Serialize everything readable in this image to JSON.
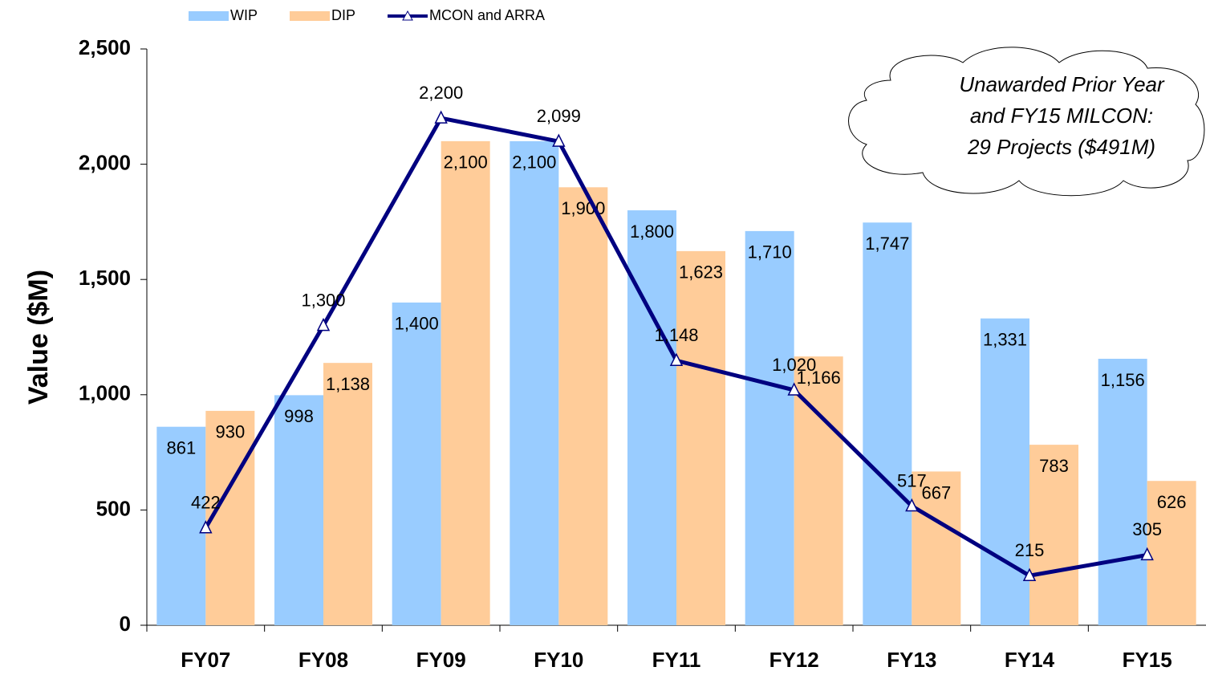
{
  "chart_data": {
    "type": "bar",
    "categories": [
      "FY07",
      "FY08",
      "FY09",
      "FY10",
      "FY11",
      "FY12",
      "FY13",
      "FY14",
      "FY15"
    ],
    "y_label": "Value ($M)",
    "annotation": [
      "Unawarded Prior Year",
      "and FY15  MILCON:",
      "29 Projects ($491M)"
    ],
    "ylim": [
      0,
      2500
    ],
    "yticks": [
      0,
      500,
      {
        "value": 1000,
        "label": "1,000"
      },
      {
        "value": 1500,
        "label": "1,500"
      },
      {
        "value": 2000,
        "label": "2,000"
      },
      {
        "value": 2500,
        "label": "2,500"
      }
    ],
    "legend": "top",
    "series": [
      {
        "name": "WIP",
        "color": "#99ccff",
        "type": "bar",
        "values": [
          861,
          998,
          1400,
          2100,
          1800,
          1710,
          1747,
          1331,
          1156
        ],
        "value_labels": [
          "861",
          "998",
          "1,400",
          "2,100",
          "1,800",
          "1,710",
          "1,747",
          "1,331",
          "1,156"
        ]
      },
      {
        "name": "DIP",
        "color": "#ffcc99",
        "type": "bar",
        "values": [
          930,
          1138,
          2100,
          1900,
          1623,
          1166,
          667,
          783,
          626
        ],
        "value_labels": [
          "930",
          "1,138",
          "2,100",
          "1,900",
          "1,623",
          "1,166",
          "667",
          "783",
          "626"
        ]
      },
      {
        "name": "MCON and ARRA",
        "color": "#000080",
        "type": "line",
        "values": [
          422,
          1300,
          2200,
          2099,
          1148,
          1020,
          517,
          215,
          305
        ],
        "value_labels": [
          "422",
          "1,300",
          "2,200",
          "2,099",
          "1,148",
          "1,020",
          "517",
          "215",
          "305"
        ]
      }
    ]
  }
}
